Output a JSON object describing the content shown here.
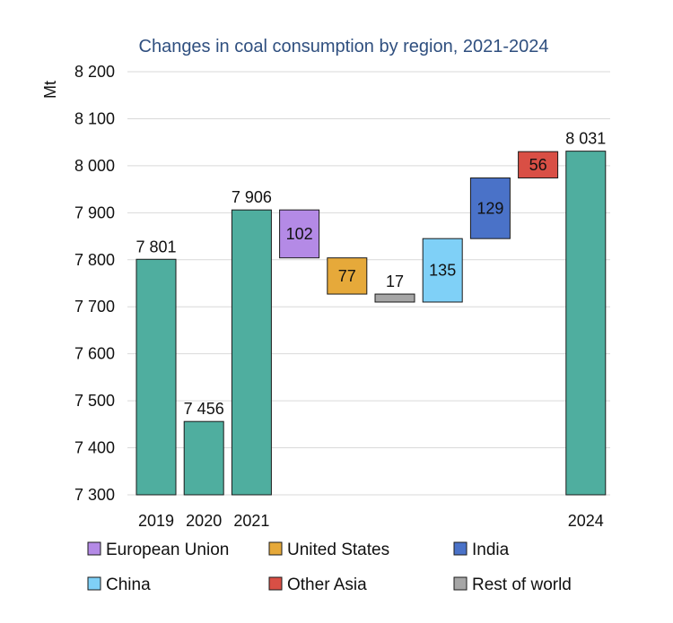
{
  "chart_data": {
    "type": "bar",
    "subtype": "waterfall",
    "title": "Changes in coal consumption by region, 2021-2024",
    "ylabel": "Mt",
    "ylim": [
      7300,
      8200
    ],
    "yticks": [
      7300,
      7400,
      7500,
      7600,
      7700,
      7800,
      7900,
      8000,
      8100,
      8200
    ],
    "ytick_labels": [
      "7 300",
      "7 400",
      "7 500",
      "7 600",
      "7 700",
      "7 800",
      "7 900",
      "8 000",
      "8 100",
      "8 200"
    ],
    "grid": true,
    "totals": [
      {
        "category": "2019",
        "value": 7801,
        "label": "7 801"
      },
      {
        "category": "2020",
        "value": 7456,
        "label": "7 456"
      },
      {
        "category": "2021",
        "value": 7906,
        "label": "7 906"
      },
      {
        "category": "2024",
        "value": 8031,
        "label": "8 031"
      }
    ],
    "changes": [
      {
        "name": "European Union",
        "value": -102,
        "label": "102"
      },
      {
        "name": "United States",
        "value": -77,
        "label": "77"
      },
      {
        "name": "Rest of world",
        "value": -17,
        "label": "17"
      },
      {
        "name": "China",
        "value": 135,
        "label": "135"
      },
      {
        "name": "India",
        "value": 129,
        "label": "129"
      },
      {
        "name": "Other Asia",
        "value": 56,
        "label": "56"
      }
    ],
    "legend": [
      "European Union",
      "United States",
      "India",
      "China",
      "Other Asia",
      "Rest of world"
    ],
    "legend_position": "bottom",
    "colors": {
      "total": "#4fae9f",
      "European Union": "#b48ae6",
      "United States": "#e6a93a",
      "India": "#4a72c8",
      "China": "#7fd0f7",
      "Other Asia": "#d94f45",
      "Rest of world": "#a6a6a6",
      "title": "#2f4f7f",
      "grid": "#d9d9d9"
    }
  }
}
